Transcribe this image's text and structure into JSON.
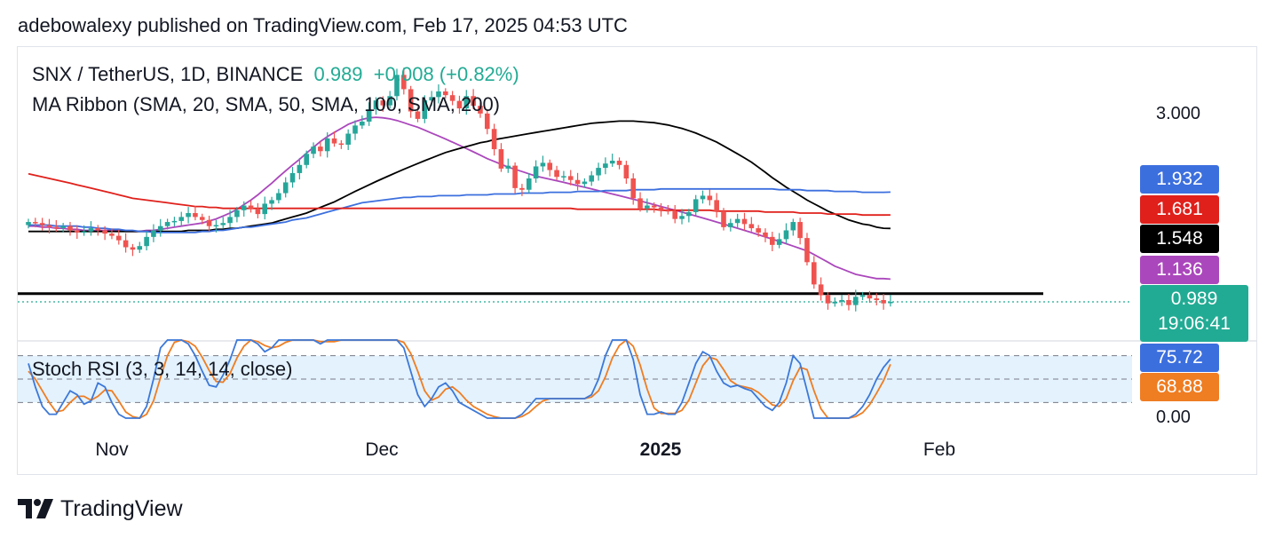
{
  "header": {
    "published": "adebowalexy published on TradingView.com, Feb 17, 2025 04:53 UTC"
  },
  "legend": {
    "symbol": "SNX / TetherUS, 1D, BINANCE",
    "price": "0.989",
    "change": "+0.008 (+0.82%)",
    "ma_ribbon": "MA Ribbon (SMA, 20, SMA, 50, SMA, 100, SMA, 200)",
    "stoch": "Stoch RSI (3, 3, 14, 14, close)"
  },
  "price_axis": {
    "tick_3000": "3.000"
  },
  "stoch_axis": {
    "tick_0": "0.00"
  },
  "tags": {
    "sma100": "1.932",
    "sma200": "1.681",
    "sma50": "1.548",
    "sma20": "1.136",
    "last_price": "0.989",
    "countdown": "19:06:41",
    "stoch_k": "75.72",
    "stoch_d": "68.88"
  },
  "colors": {
    "up": "#26a69a",
    "down": "#ef5350",
    "sma20": "#ab47bc",
    "sma50": "#000000",
    "sma100": "#3c6fde",
    "sma200": "#e0201b",
    "stoch_k": "#3c78d8",
    "stoch_d": "#ef7d22",
    "stoch_band": "#e3f2fd"
  },
  "time_axis": {
    "nov": "Nov",
    "dec": "Dec",
    "year": "2025",
    "feb": "Feb"
  },
  "footer": {
    "brand": "TradingView",
    "logo_icon": "tradingview-logo-icon"
  },
  "chart_data": {
    "type": "candlestick",
    "symbol": "SNX / TetherUS",
    "interval": "1D",
    "exchange": "BINANCE",
    "last": 0.989,
    "change": 0.008,
    "change_pct": 0.82,
    "y_scale": "log",
    "price_ticks": [
      3.0
    ],
    "x_labels": [
      "Nov",
      "Dec",
      "2025",
      "Feb"
    ],
    "candles_close": [
      1.61,
      1.6,
      1.58,
      1.56,
      1.55,
      1.57,
      1.53,
      1.51,
      1.52,
      1.55,
      1.53,
      1.5,
      1.48,
      1.44,
      1.38,
      1.36,
      1.39,
      1.47,
      1.53,
      1.57,
      1.61,
      1.62,
      1.66,
      1.7,
      1.66,
      1.63,
      1.57,
      1.58,
      1.6,
      1.66,
      1.73,
      1.78,
      1.74,
      1.69,
      1.8,
      1.84,
      1.92,
      2.05,
      2.17,
      2.28,
      2.44,
      2.55,
      2.48,
      2.68,
      2.6,
      2.58,
      2.76,
      2.9,
      2.97,
      3.2,
      3.38,
      3.28,
      3.47,
      3.95,
      3.62,
      3.16,
      3.02,
      3.38,
      3.45,
      3.57,
      3.49,
      3.37,
      3.22,
      3.47,
      3.27,
      3.12,
      2.84,
      2.51,
      2.23,
      2.27,
      1.98,
      1.96,
      2.1,
      2.26,
      2.31,
      2.21,
      2.12,
      2.13,
      2.08,
      2.03,
      2.06,
      2.14,
      2.24,
      2.3,
      2.34,
      2.28,
      2.1,
      1.86,
      1.75,
      1.78,
      1.76,
      1.73,
      1.72,
      1.64,
      1.67,
      1.71,
      1.85,
      1.89,
      1.84,
      1.72,
      1.56,
      1.6,
      1.64,
      1.59,
      1.55,
      1.51,
      1.47,
      1.4,
      1.45,
      1.53,
      1.61,
      1.46,
      1.26,
      1.1,
      1.03,
      0.98,
      0.99,
      1.0,
      0.97,
      1.02,
      1.03,
      1.01,
      1.0,
      0.98,
      0.989
    ],
    "candles_open": [
      1.58,
      1.61,
      1.6,
      1.58,
      1.56,
      1.55,
      1.57,
      1.53,
      1.51,
      1.52,
      1.55,
      1.53,
      1.5,
      1.48,
      1.44,
      1.38,
      1.36,
      1.39,
      1.47,
      1.53,
      1.57,
      1.61,
      1.62,
      1.66,
      1.7,
      1.66,
      1.63,
      1.57,
      1.58,
      1.6,
      1.66,
      1.73,
      1.78,
      1.74,
      1.69,
      1.8,
      1.84,
      1.92,
      2.05,
      2.17,
      2.28,
      2.44,
      2.55,
      2.48,
      2.68,
      2.6,
      2.58,
      2.76,
      2.9,
      2.97,
      3.2,
      3.38,
      3.28,
      3.47,
      3.95,
      3.62,
      3.16,
      3.02,
      3.38,
      3.45,
      3.57,
      3.49,
      3.37,
      3.22,
      3.47,
      3.27,
      3.12,
      2.84,
      2.51,
      2.23,
      2.27,
      1.98,
      1.96,
      2.1,
      2.26,
      2.31,
      2.21,
      2.12,
      2.13,
      2.08,
      2.03,
      2.06,
      2.14,
      2.24,
      2.3,
      2.34,
      2.28,
      2.1,
      1.86,
      1.75,
      1.78,
      1.76,
      1.73,
      1.72,
      1.64,
      1.67,
      1.71,
      1.85,
      1.89,
      1.84,
      1.72,
      1.56,
      1.6,
      1.64,
      1.59,
      1.55,
      1.51,
      1.47,
      1.4,
      1.45,
      1.53,
      1.61,
      1.46,
      1.26,
      1.1,
      1.03,
      0.98,
      0.99,
      1.0,
      0.97,
      1.02,
      1.03,
      1.01,
      1.0,
      0.981
    ],
    "series": [
      {
        "name": "SMA 20",
        "values": [
          1.57,
          1.57,
          1.56,
          1.56,
          1.55,
          1.55,
          1.54,
          1.54,
          1.53,
          1.53,
          1.53,
          1.53,
          1.53,
          1.53,
          1.52,
          1.52,
          1.52,
          1.53,
          1.53,
          1.54,
          1.55,
          1.56,
          1.57,
          1.58,
          1.59,
          1.6,
          1.62,
          1.64,
          1.67,
          1.7,
          1.74,
          1.79,
          1.84,
          1.9,
          1.97,
          2.04,
          2.12,
          2.2,
          2.28,
          2.36,
          2.45,
          2.54,
          2.63,
          2.71,
          2.78,
          2.85,
          2.92,
          2.97,
          3.01,
          3.04,
          3.05,
          3.04,
          3.02,
          2.99,
          2.95,
          2.91,
          2.87,
          2.82,
          2.77,
          2.72,
          2.67,
          2.62,
          2.57,
          2.52,
          2.47,
          2.42,
          2.37,
          2.33,
          2.29,
          2.25,
          2.22,
          2.19,
          2.16,
          2.13,
          2.11,
          2.09,
          2.07,
          2.05,
          2.03,
          2.01,
          1.99,
          1.97,
          1.95,
          1.93,
          1.91,
          1.89,
          1.87,
          1.85,
          1.83,
          1.81,
          1.79,
          1.77,
          1.75,
          1.73,
          1.71,
          1.69,
          1.67,
          1.65,
          1.63,
          1.61,
          1.59,
          1.57,
          1.55,
          1.53,
          1.51,
          1.49,
          1.47,
          1.45,
          1.43,
          1.41,
          1.39,
          1.37,
          1.35,
          1.32,
          1.29,
          1.26,
          1.23,
          1.21,
          1.19,
          1.17,
          1.16,
          1.15,
          1.14,
          1.14,
          1.136
        ]
      },
      {
        "name": "SMA 50",
        "values": [
          1.52,
          1.52,
          1.52,
          1.52,
          1.52,
          1.52,
          1.52,
          1.52,
          1.52,
          1.52,
          1.52,
          1.52,
          1.52,
          1.52,
          1.52,
          1.52,
          1.52,
          1.52,
          1.52,
          1.52,
          1.52,
          1.52,
          1.52,
          1.53,
          1.53,
          1.53,
          1.53,
          1.54,
          1.54,
          1.55,
          1.55,
          1.56,
          1.57,
          1.58,
          1.59,
          1.6,
          1.62,
          1.64,
          1.66,
          1.68,
          1.7,
          1.73,
          1.76,
          1.79,
          1.82,
          1.86,
          1.9,
          1.94,
          1.98,
          2.02,
          2.06,
          2.1,
          2.14,
          2.18,
          2.22,
          2.26,
          2.3,
          2.34,
          2.38,
          2.42,
          2.46,
          2.49,
          2.52,
          2.55,
          2.58,
          2.61,
          2.63,
          2.66,
          2.68,
          2.7,
          2.72,
          2.74,
          2.76,
          2.78,
          2.8,
          2.82,
          2.84,
          2.86,
          2.88,
          2.9,
          2.92,
          2.94,
          2.95,
          2.96,
          2.97,
          2.98,
          2.98,
          2.98,
          2.97,
          2.96,
          2.95,
          2.93,
          2.91,
          2.88,
          2.85,
          2.81,
          2.77,
          2.72,
          2.67,
          2.62,
          2.56,
          2.5,
          2.44,
          2.38,
          2.32,
          2.25,
          2.18,
          2.11,
          2.05,
          1.99,
          1.94,
          1.89,
          1.84,
          1.8,
          1.76,
          1.72,
          1.69,
          1.66,
          1.63,
          1.61,
          1.59,
          1.58,
          1.56,
          1.55,
          1.548
        ]
      },
      {
        "name": "SMA 100",
        "values": [
          1.58,
          1.58,
          1.58,
          1.58,
          1.57,
          1.57,
          1.57,
          1.57,
          1.56,
          1.56,
          1.55,
          1.55,
          1.54,
          1.54,
          1.53,
          1.53,
          1.52,
          1.52,
          1.51,
          1.51,
          1.51,
          1.51,
          1.51,
          1.51,
          1.51,
          1.52,
          1.52,
          1.53,
          1.53,
          1.54,
          1.55,
          1.56,
          1.56,
          1.57,
          1.58,
          1.59,
          1.6,
          1.61,
          1.63,
          1.64,
          1.65,
          1.67,
          1.69,
          1.71,
          1.73,
          1.75,
          1.77,
          1.79,
          1.81,
          1.82,
          1.83,
          1.84,
          1.85,
          1.86,
          1.87,
          1.87,
          1.88,
          1.88,
          1.88,
          1.89,
          1.89,
          1.89,
          1.89,
          1.9,
          1.9,
          1.9,
          1.9,
          1.91,
          1.91,
          1.91,
          1.91,
          1.92,
          1.92,
          1.92,
          1.92,
          1.93,
          1.93,
          1.93,
          1.93,
          1.94,
          1.94,
          1.94,
          1.94,
          1.95,
          1.95,
          1.95,
          1.95,
          1.96,
          1.96,
          1.96,
          1.96,
          1.97,
          1.97,
          1.97,
          1.97,
          1.97,
          1.97,
          1.97,
          1.97,
          1.97,
          1.97,
          1.97,
          1.97,
          1.97,
          1.97,
          1.97,
          1.97,
          1.97,
          1.96,
          1.96,
          1.96,
          1.96,
          1.95,
          1.95,
          1.95,
          1.95,
          1.94,
          1.94,
          1.94,
          1.94,
          1.93,
          1.93,
          1.93,
          1.93,
          1.932
        ]
      },
      {
        "name": "SMA 200",
        "values": [
          2.16,
          2.14,
          2.12,
          2.1,
          2.08,
          2.06,
          2.04,
          2.02,
          2.0,
          1.98,
          1.96,
          1.94,
          1.92,
          1.9,
          1.88,
          1.86,
          1.85,
          1.84,
          1.83,
          1.82,
          1.81,
          1.8,
          1.79,
          1.78,
          1.77,
          1.77,
          1.76,
          1.76,
          1.75,
          1.75,
          1.75,
          1.75,
          1.75,
          1.75,
          1.75,
          1.75,
          1.75,
          1.75,
          1.75,
          1.75,
          1.75,
          1.75,
          1.75,
          1.75,
          1.75,
          1.75,
          1.75,
          1.75,
          1.75,
          1.75,
          1.75,
          1.75,
          1.75,
          1.75,
          1.75,
          1.75,
          1.75,
          1.75,
          1.75,
          1.75,
          1.75,
          1.75,
          1.75,
          1.75,
          1.75,
          1.75,
          1.75,
          1.75,
          1.75,
          1.75,
          1.75,
          1.75,
          1.75,
          1.75,
          1.75,
          1.75,
          1.75,
          1.75,
          1.75,
          1.74,
          1.74,
          1.74,
          1.74,
          1.74,
          1.74,
          1.74,
          1.74,
          1.74,
          1.74,
          1.74,
          1.74,
          1.73,
          1.73,
          1.73,
          1.73,
          1.73,
          1.73,
          1.73,
          1.73,
          1.72,
          1.72,
          1.72,
          1.72,
          1.72,
          1.72,
          1.72,
          1.71,
          1.71,
          1.71,
          1.71,
          1.71,
          1.7,
          1.7,
          1.7,
          1.7,
          1.69,
          1.69,
          1.69,
          1.69,
          1.69,
          1.68,
          1.68,
          1.68,
          1.68,
          1.681
        ]
      }
    ],
    "horizontal_line": 1.04,
    "stoch_rsi": {
      "name": "Stoch RSI (3, 3, 14, 14, close)",
      "levels": [
        80,
        50,
        20
      ],
      "ylim": [
        0,
        100
      ],
      "k": [
        70,
        40,
        15,
        5,
        5,
        20,
        35,
        30,
        18,
        22,
        45,
        40,
        20,
        5,
        0,
        0,
        0,
        15,
        50,
        90,
        100,
        100,
        100,
        95,
        80,
        60,
        42,
        40,
        55,
        75,
        100,
        100,
        100,
        95,
        85,
        90,
        100,
        100,
        100,
        100,
        100,
        100,
        95,
        100,
        100,
        100,
        100,
        100,
        100,
        100,
        100,
        100,
        100,
        100,
        90,
        60,
        30,
        15,
        25,
        40,
        45,
        35,
        20,
        15,
        10,
        5,
        0,
        0,
        0,
        0,
        0,
        5,
        15,
        25,
        25,
        25,
        25,
        25,
        25,
        25,
        25,
        30,
        50,
        80,
        100,
        100,
        100,
        75,
        30,
        5,
        5,
        8,
        5,
        5,
        20,
        45,
        70,
        85,
        80,
        60,
        45,
        40,
        42,
        38,
        35,
        25,
        15,
        10,
        20,
        45,
        80,
        70,
        35,
        0,
        0,
        0,
        0,
        0,
        0,
        5,
        15,
        30,
        50,
        65,
        75.72
      ],
      "d": [
        60,
        50,
        35,
        20,
        8,
        10,
        20,
        28,
        28,
        23,
        28,
        36,
        35,
        22,
        8,
        2,
        0,
        5,
        22,
        52,
        80,
        97,
        100,
        98,
        92,
        78,
        61,
        47,
        46,
        57,
        77,
        92,
        100,
        98,
        93,
        90,
        92,
        97,
        100,
        100,
        100,
        100,
        98,
        98,
        98,
        100,
        100,
        100,
        100,
        100,
        100,
        100,
        100,
        100,
        97,
        83,
        60,
        35,
        23,
        27,
        37,
        40,
        33,
        23,
        15,
        10,
        5,
        2,
        0,
        0,
        0,
        2,
        7,
        15,
        22,
        25,
        25,
        25,
        25,
        25,
        25,
        27,
        35,
        53,
        77,
        93,
        100,
        92,
        68,
        37,
        13,
        6,
        6,
        6,
        10,
        23,
        45,
        67,
        78,
        75,
        62,
        48,
        42,
        40,
        38,
        33,
        25,
        17,
        15,
        25,
        48,
        65,
        62,
        35,
        12,
        0,
        0,
        0,
        0,
        2,
        7,
        17,
        32,
        48,
        68.88
      ]
    }
  }
}
